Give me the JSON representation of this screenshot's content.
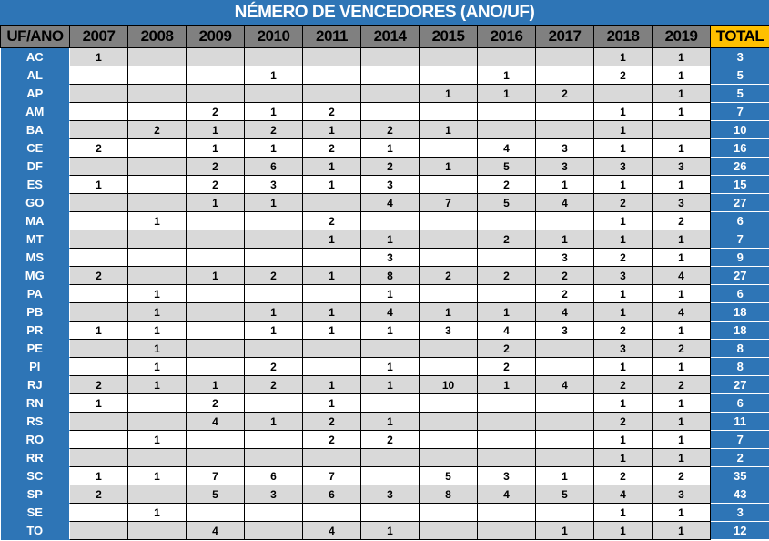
{
  "title": "NÉMERO DE VENCEDORES (ANO/UF)",
  "columns": [
    "UF/ANO",
    "2007",
    "2008",
    "2009",
    "2010",
    "2011",
    "2014",
    "2015",
    "2016",
    "2017",
    "2018",
    "2019",
    "TOTAL"
  ],
  "colors": {
    "blue": "#2E75B6",
    "header_gray": "#808080",
    "row_gray": "#D9D9D9",
    "total_header": "#FFC000"
  },
  "rows": [
    {
      "uf": "AC",
      "values": [
        "1",
        "",
        "",
        "",
        "",
        "",
        "",
        "",
        "",
        "1",
        "1"
      ],
      "total": "3"
    },
    {
      "uf": "AL",
      "values": [
        "",
        "",
        "",
        "1",
        "",
        "",
        "",
        "1",
        "",
        "2",
        "1"
      ],
      "total": "5"
    },
    {
      "uf": "AP",
      "values": [
        "",
        "",
        "",
        "",
        "",
        "",
        "1",
        "1",
        "2",
        "",
        "1"
      ],
      "total": "5"
    },
    {
      "uf": "AM",
      "values": [
        "",
        "",
        "2",
        "1",
        "2",
        "",
        "",
        "",
        "",
        "1",
        "1"
      ],
      "total": "7"
    },
    {
      "uf": "BA",
      "values": [
        "",
        "2",
        "1",
        "2",
        "1",
        "2",
        "1",
        "",
        "",
        "1",
        ""
      ],
      "total": "10"
    },
    {
      "uf": "CE",
      "values": [
        "2",
        "",
        "1",
        "1",
        "2",
        "1",
        "",
        "4",
        "3",
        "1",
        "1"
      ],
      "total": "16"
    },
    {
      "uf": "DF",
      "values": [
        "",
        "",
        "2",
        "6",
        "1",
        "2",
        "1",
        "5",
        "3",
        "3",
        "3"
      ],
      "total": "26"
    },
    {
      "uf": "ES",
      "values": [
        "1",
        "",
        "2",
        "3",
        "1",
        "3",
        "",
        "2",
        "1",
        "1",
        "1"
      ],
      "total": "15"
    },
    {
      "uf": "GO",
      "values": [
        "",
        "",
        "1",
        "1",
        "",
        "4",
        "7",
        "5",
        "4",
        "2",
        "3"
      ],
      "total": "27"
    },
    {
      "uf": "MA",
      "values": [
        "",
        "1",
        "",
        "",
        "2",
        "",
        "",
        "",
        "",
        "1",
        "2"
      ],
      "total": "6"
    },
    {
      "uf": "MT",
      "values": [
        "",
        "",
        "",
        "",
        "1",
        "1",
        "",
        "2",
        "1",
        "1",
        "1"
      ],
      "total": "7"
    },
    {
      "uf": "MS",
      "values": [
        "",
        "",
        "",
        "",
        "",
        "3",
        "",
        "",
        "3",
        "2",
        "1"
      ],
      "total": "9"
    },
    {
      "uf": "MG",
      "values": [
        "2",
        "",
        "1",
        "2",
        "1",
        "8",
        "2",
        "2",
        "2",
        "3",
        "4"
      ],
      "total": "27"
    },
    {
      "uf": "PA",
      "values": [
        "",
        "1",
        "",
        "",
        "",
        "1",
        "",
        "",
        "2",
        "1",
        "1"
      ],
      "total": "6"
    },
    {
      "uf": "PB",
      "values": [
        "",
        "1",
        "",
        "1",
        "1",
        "4",
        "1",
        "1",
        "4",
        "1",
        "4"
      ],
      "total": "18"
    },
    {
      "uf": "PR",
      "values": [
        "1",
        "1",
        "",
        "1",
        "1",
        "1",
        "3",
        "4",
        "3",
        "2",
        "1"
      ],
      "total": "18"
    },
    {
      "uf": "PE",
      "values": [
        "",
        "1",
        "",
        "",
        "",
        "",
        "",
        "2",
        "",
        "3",
        "2"
      ],
      "total": "8"
    },
    {
      "uf": "PI",
      "values": [
        "",
        "1",
        "",
        "2",
        "",
        "1",
        "",
        "2",
        "",
        "1",
        "1"
      ],
      "total": "8"
    },
    {
      "uf": "RJ",
      "values": [
        "2",
        "1",
        "1",
        "2",
        "1",
        "1",
        "10",
        "1",
        "4",
        "2",
        "2"
      ],
      "total": "27"
    },
    {
      "uf": "RN",
      "values": [
        "1",
        "",
        "2",
        "",
        "1",
        "",
        "",
        "",
        "",
        "1",
        "1"
      ],
      "total": "6"
    },
    {
      "uf": "RS",
      "values": [
        "",
        "",
        "4",
        "1",
        "2",
        "1",
        "",
        "",
        "",
        "2",
        "1"
      ],
      "total": "11"
    },
    {
      "uf": "RO",
      "values": [
        "",
        "1",
        "",
        "",
        "2",
        "2",
        "",
        "",
        "",
        "1",
        "1"
      ],
      "total": "7"
    },
    {
      "uf": "RR",
      "values": [
        "",
        "",
        "",
        "",
        "",
        "",
        "",
        "",
        "",
        "1",
        "1"
      ],
      "total": "2"
    },
    {
      "uf": "SC",
      "values": [
        "1",
        "1",
        "7",
        "6",
        "7",
        "",
        "5",
        "3",
        "1",
        "2",
        "2"
      ],
      "total": "35"
    },
    {
      "uf": "SP",
      "values": [
        "2",
        "",
        "5",
        "3",
        "6",
        "3",
        "8",
        "4",
        "5",
        "4",
        "3"
      ],
      "total": "43"
    },
    {
      "uf": "SE",
      "values": [
        "",
        "1",
        "",
        "",
        "",
        "",
        "",
        "",
        "",
        "1",
        "1"
      ],
      "total": "3"
    },
    {
      "uf": "TO",
      "values": [
        "",
        "",
        "4",
        "",
        "4",
        "1",
        "",
        "",
        "1",
        "1",
        "1"
      ],
      "total": "12"
    }
  ]
}
